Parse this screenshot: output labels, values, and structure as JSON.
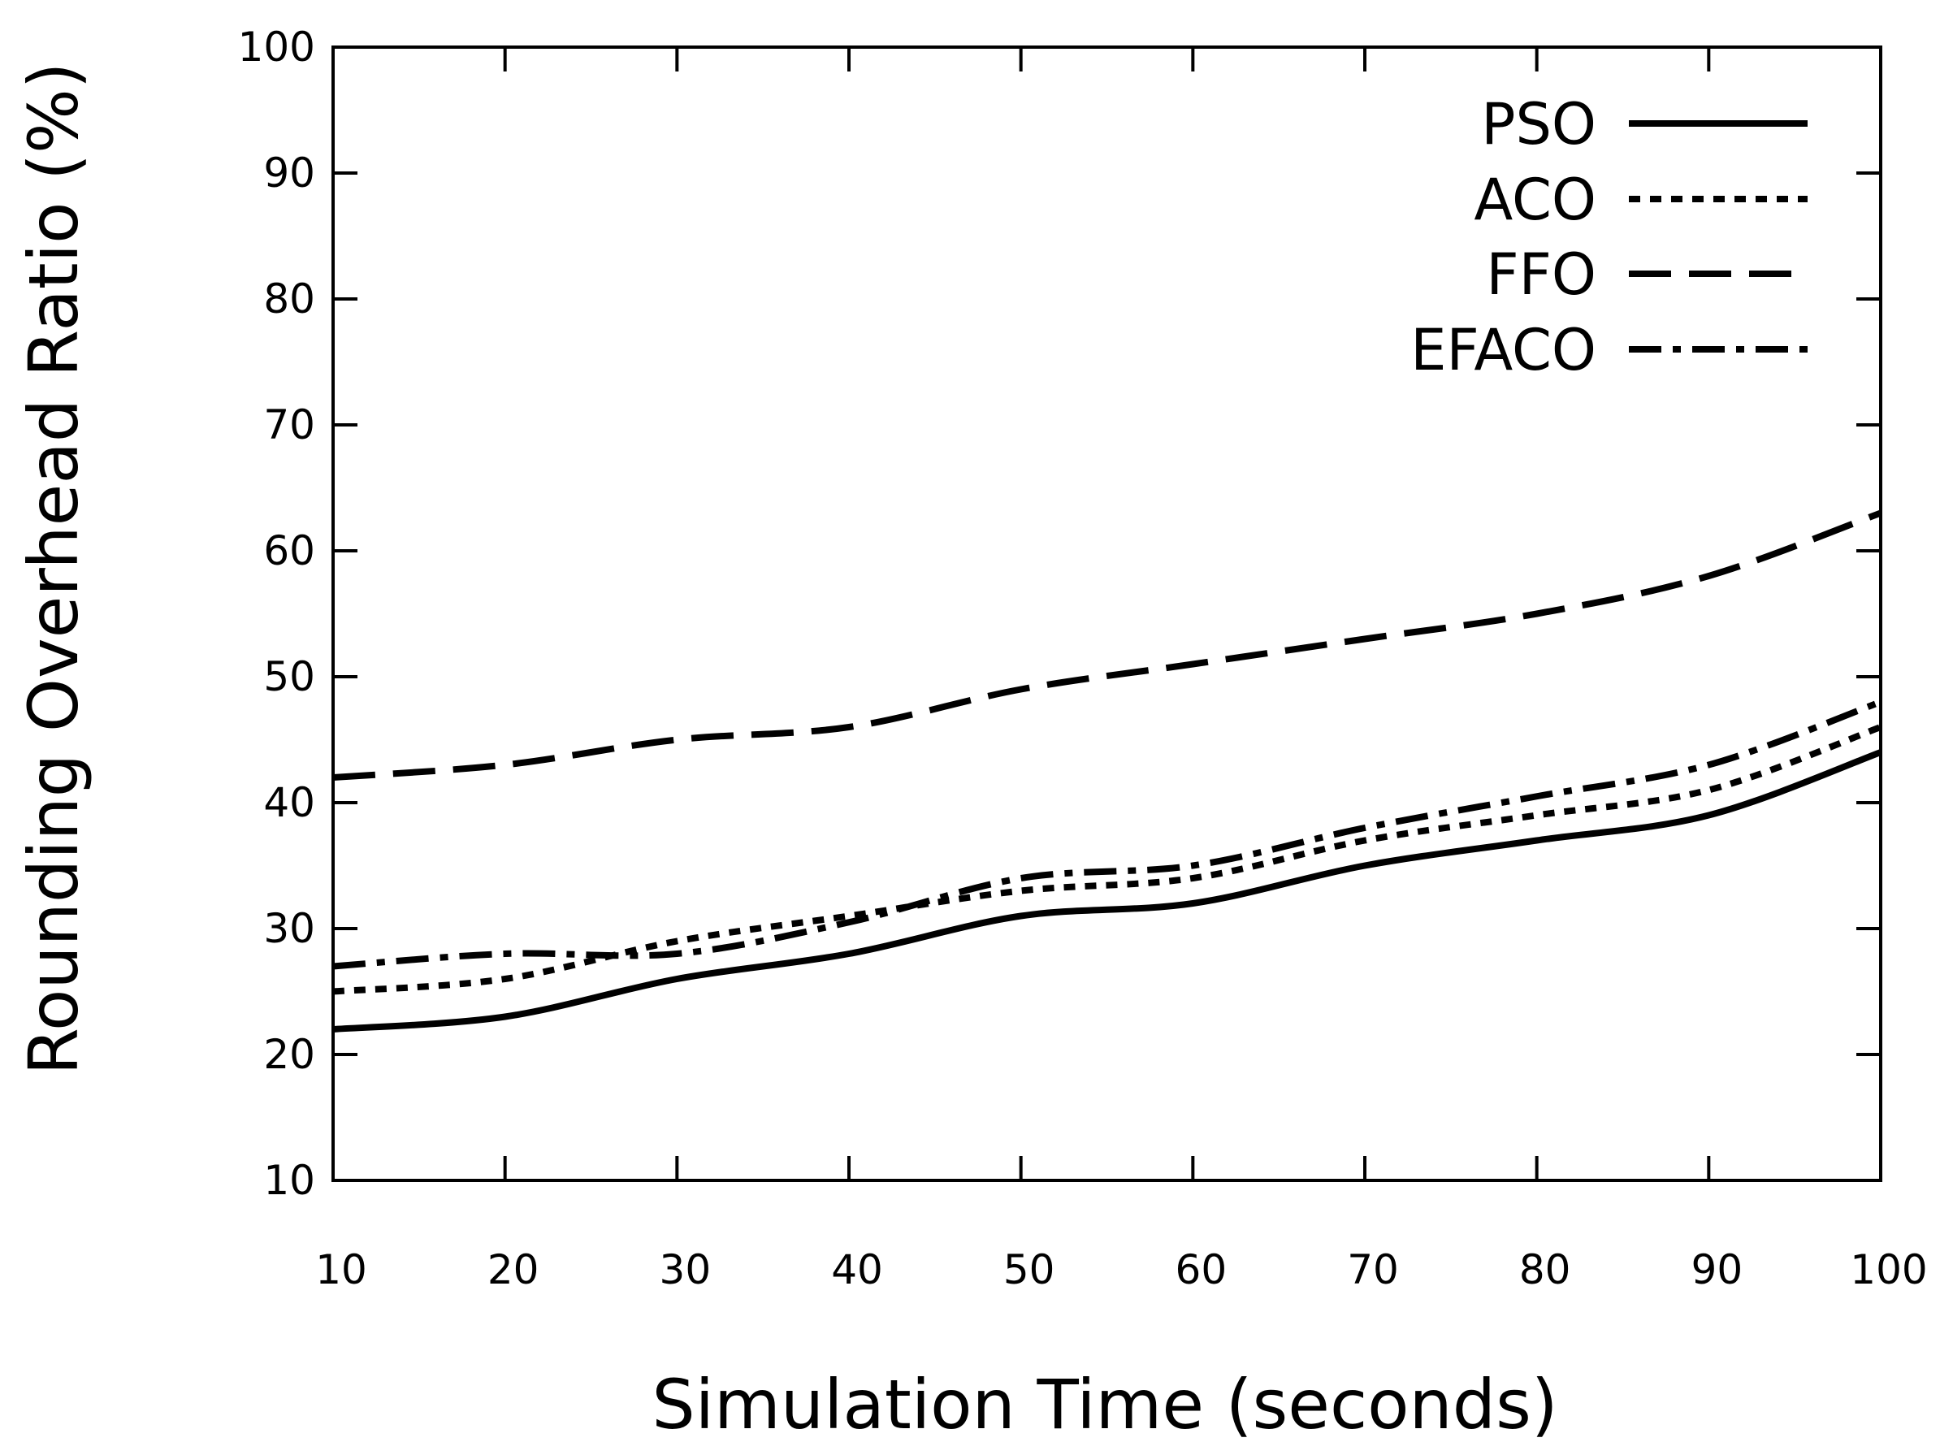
{
  "chart_data": {
    "type": "line",
    "title": "",
    "xlabel": "Simulation Time (seconds)",
    "ylabel": "Rounding Overhead Ratio (%)",
    "xlim": [
      10,
      100
    ],
    "ylim": [
      10,
      100
    ],
    "xticks": [
      10,
      20,
      30,
      40,
      50,
      60,
      70,
      80,
      90,
      100
    ],
    "yticks": [
      10,
      20,
      30,
      40,
      50,
      60,
      70,
      80,
      90,
      100
    ],
    "x": [
      10,
      20,
      30,
      40,
      50,
      60,
      70,
      80,
      90,
      100
    ],
    "legend_position": "top-right",
    "grid": false,
    "series": [
      {
        "name": "PSO",
        "style": "solid",
        "values": [
          22,
          23,
          26,
          28,
          31,
          32,
          35,
          37,
          39,
          44
        ]
      },
      {
        "name": "ACO",
        "style": "dotted",
        "values": [
          25,
          26,
          29,
          31,
          33,
          34,
          37,
          39,
          41,
          46
        ]
      },
      {
        "name": "FFO",
        "style": "dashed",
        "values": [
          42,
          43,
          45,
          46,
          49,
          51,
          53,
          55,
          58,
          63
        ]
      },
      {
        "name": "EFACO",
        "style": "dash-dot",
        "values": [
          27,
          28,
          28,
          30.5,
          34,
          35,
          38,
          40.5,
          43,
          48
        ]
      }
    ]
  }
}
